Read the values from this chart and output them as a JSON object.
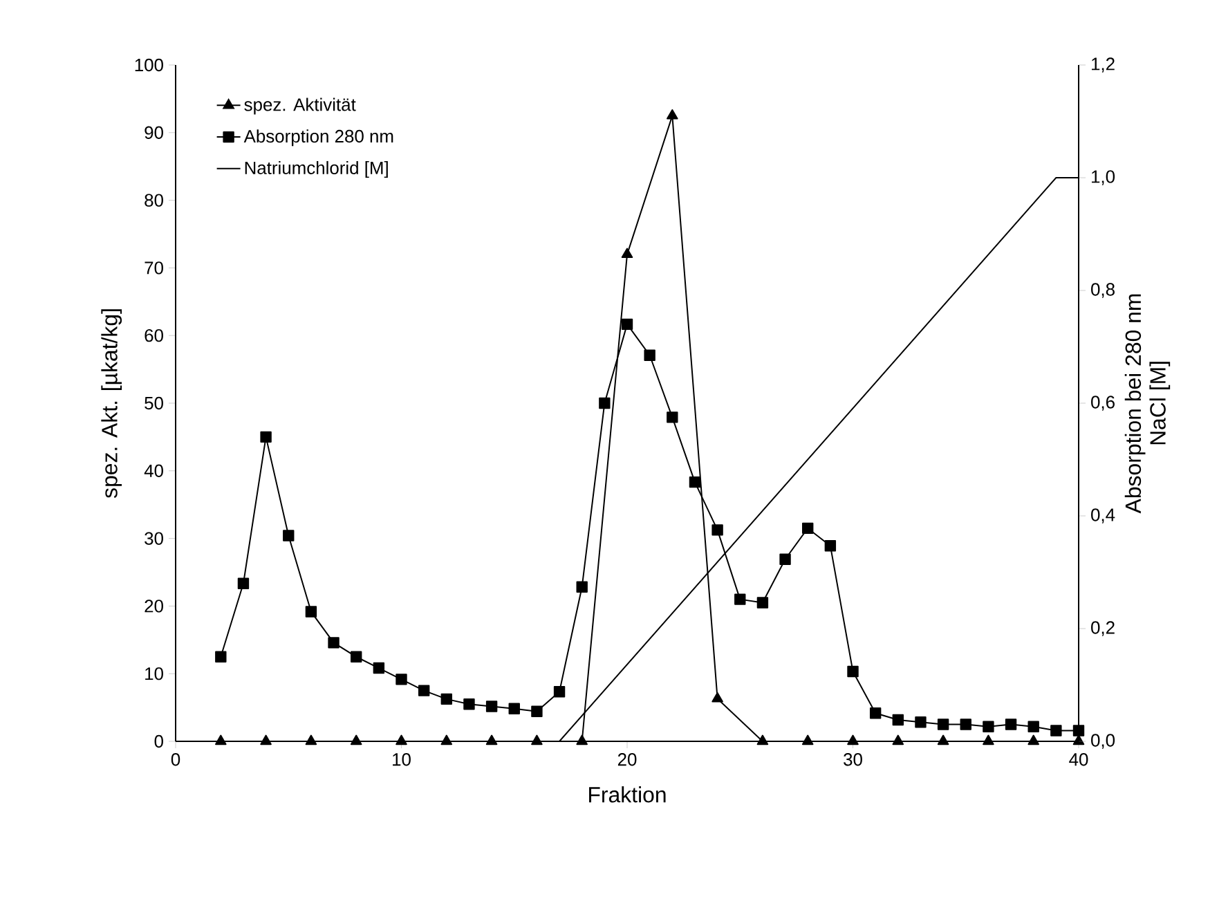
{
  "chart_data": {
    "type": "line",
    "xlabel": "Fraktion",
    "ylabel": "spez. Akt. [µkat/kg]",
    "y2label": "Absorption bei 280 nm",
    "annotations": [
      "NaCl [M]"
    ],
    "xlim": [
      0,
      40
    ],
    "xticks": [
      0,
      10,
      20,
      30,
      40
    ],
    "ylim": [
      0,
      100
    ],
    "yticks": [
      0,
      10,
      20,
      30,
      40,
      50,
      60,
      70,
      80,
      90,
      100
    ],
    "y2lim": [
      0,
      1.2
    ],
    "y2ticks": [
      {
        "value": 0,
        "label": "0,0"
      },
      {
        "value": 0.2,
        "label": "0,2"
      },
      {
        "value": 0.4,
        "label": "0,4"
      },
      {
        "value": 0.6,
        "label": "0,6"
      },
      {
        "value": 0.8,
        "label": "0,8"
      },
      {
        "value": 1.0,
        "label": "1,0"
      },
      {
        "value": 1.2,
        "label": "1,2"
      }
    ],
    "legend": "top left",
    "grid": false,
    "series": [
      {
        "name": "spez. Aktivität",
        "color": "#000000",
        "marker": "triangle",
        "x": [
          2,
          4,
          6,
          8,
          10,
          12,
          14,
          16,
          18,
          20,
          22,
          24,
          26,
          28,
          30,
          32,
          34,
          36,
          38,
          40
        ],
        "values": [
          0,
          0,
          0,
          0,
          0,
          0,
          0,
          0,
          0,
          72,
          92.5,
          6.3,
          0,
          0,
          0,
          0,
          0,
          0,
          0,
          0
        ]
      },
      {
        "name": "Absorption 280 nm",
        "color": "#000000",
        "marker": "square",
        "axis": "y2",
        "x": [
          2,
          3,
          4,
          5,
          6,
          7,
          8,
          9,
          10,
          11,
          12,
          13,
          14,
          15,
          16,
          17,
          18,
          19,
          20,
          21,
          22,
          23,
          24,
          25,
          26,
          27,
          28,
          29,
          30,
          31,
          32,
          33,
          34,
          35,
          36,
          37,
          38,
          39,
          40
        ],
        "values": [
          0.15,
          0.28,
          0.54,
          0.365,
          0.23,
          0.175,
          0.15,
          0.13,
          0.11,
          0.09,
          0.075,
          0.066,
          0.062,
          0.058,
          0.053,
          0.088,
          0.274,
          0.6,
          0.74,
          0.685,
          0.575,
          0.46,
          0.375,
          0.252,
          0.246,
          0.323,
          0.378,
          0.347,
          0.124,
          0.05,
          0.038,
          0.034,
          0.03,
          0.03,
          0.026,
          0.03,
          0.026,
          0.019,
          0.019
        ]
      },
      {
        "name": "Natriumchlorid [M]",
        "color": "#000000",
        "marker": "none",
        "axis": "y2",
        "x": [
          17,
          39,
          40
        ],
        "values": [
          0,
          1.0,
          1.0
        ]
      }
    ]
  }
}
